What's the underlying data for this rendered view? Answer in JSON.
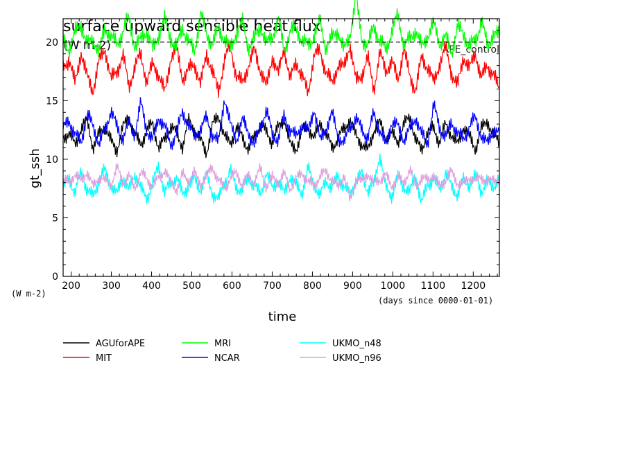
{
  "chart_data": {
    "type": "line",
    "title": "surface upward sensible heat flux",
    "title_units": "(W m-2)",
    "annotation": "APE_control",
    "xlabel": "time",
    "xunits": "(days since 0000-01-01)",
    "ylabel": "gt_ssh",
    "yunits": "(W m-2)",
    "xlim": [
      180,
      1265
    ],
    "ylim": [
      0,
      22
    ],
    "xticks": [
      200,
      300,
      400,
      500,
      600,
      700,
      800,
      900,
      1000,
      1100,
      1200
    ],
    "yticks": [
      0,
      5,
      10,
      15,
      20
    ],
    "reference_line_y": 20,
    "grid": false,
    "legend_position": "bottom",
    "series": [
      {
        "name": "AGUforAPE",
        "color": "#000000",
        "mean": 11.9,
        "min": 9.8,
        "max": 14.0,
        "values": [
          11.8,
          12.3,
          11.2,
          12.6,
          13.4,
          11.0,
          12.1,
          12.9,
          11.5,
          10.8,
          12.7,
          13.6,
          12.0,
          11.3,
          12.4,
          13.1,
          10.9,
          11.7,
          12.8,
          12.2,
          11.1,
          13.3,
          12.5,
          11.6,
          10.6,
          12.9,
          13.8,
          11.9,
          11.4,
          12.6,
          12.0,
          10.8,
          11.9,
          13.0,
          12.3,
          11.5,
          12.7,
          13.5,
          11.2,
          10.9,
          12.4,
          12.8,
          11.7,
          13.2,
          12.1,
          11.0,
          11.8,
          12.6,
          13.4,
          12.0,
          11.3,
          10.7,
          12.5,
          13.1,
          11.8,
          12.2,
          11.5,
          12.9,
          13.7,
          11.6,
          10.8,
          12.3,
          12.7,
          11.4,
          13.0,
          12.1,
          11.2,
          12.8,
          11.9,
          10.9,
          12.6,
          13.3,
          12.0,
          11.5
        ]
      },
      {
        "name": "MIT",
        "color": "#ff0000",
        "mean": 17.6,
        "min": 15.2,
        "max": 20.2,
        "values": [
          17.8,
          18.6,
          16.4,
          19.2,
          17.0,
          15.9,
          18.3,
          19.5,
          16.8,
          17.5,
          18.9,
          16.2,
          17.9,
          19.0,
          16.6,
          18.1,
          17.3,
          15.6,
          18.7,
          19.4,
          16.9,
          17.6,
          18.2,
          16.3,
          19.1,
          17.4,
          15.8,
          18.5,
          19.7,
          17.1,
          16.5,
          18.0,
          19.3,
          17.7,
          16.1,
          18.8,
          17.2,
          19.6,
          16.7,
          18.4,
          17.0,
          15.7,
          18.9,
          19.2,
          17.5,
          16.4,
          18.1,
          17.8,
          19.9,
          16.6,
          17.3,
          18.6,
          16.0,
          19.0,
          17.6,
          18.3,
          16.8,
          19.4,
          17.1,
          15.9,
          18.7,
          17.9,
          16.5,
          18.2,
          19.5,
          17.4,
          16.2,
          18.8,
          17.7,
          19.1,
          16.9,
          18.0,
          17.3,
          15.8
        ]
      },
      {
        "name": "MRI",
        "color": "#00ff00",
        "mean": 20.0,
        "min": 18.5,
        "max": 23.7,
        "values": [
          20.1,
          19.4,
          20.8,
          21.6,
          19.7,
          20.3,
          19.1,
          21.2,
          20.5,
          19.8,
          20.9,
          22.1,
          19.6,
          20.2,
          21.0,
          19.3,
          20.7,
          21.9,
          20.4,
          19.5,
          21.3,
          20.0,
          19.2,
          22.5,
          20.6,
          19.9,
          21.1,
          20.3,
          19.4,
          20.8,
          21.7,
          19.6,
          20.2,
          21.4,
          19.8,
          20.5,
          22.0,
          19.3,
          20.9,
          21.2,
          20.1,
          19.7,
          20.6,
          21.8,
          19.5,
          20.4,
          21.0,
          19.2,
          20.7,
          23.7,
          20.3,
          19.6,
          21.5,
          20.0,
          19.4,
          20.9,
          22.3,
          19.8,
          20.2,
          21.1,
          19.5,
          20.6,
          21.6,
          19.9,
          20.4,
          19.1,
          21.3,
          20.7,
          19.7,
          20.1,
          21.9,
          19.6,
          20.8,
          20.5
        ]
      },
      {
        "name": "NCAR",
        "color": "#0000ff",
        "mean": 12.5,
        "min": 10.8,
        "max": 15.3,
        "values": [
          12.6,
          13.4,
          12.0,
          11.5,
          13.8,
          12.9,
          11.3,
          12.4,
          14.2,
          12.7,
          11.8,
          13.1,
          12.2,
          14.8,
          12.5,
          11.6,
          13.6,
          12.8,
          11.2,
          12.3,
          14.0,
          13.0,
          11.9,
          12.6,
          13.5,
          12.1,
          11.4,
          15.3,
          12.9,
          11.7,
          13.3,
          12.4,
          11.1,
          12.8,
          14.1,
          12.2,
          11.6,
          13.7,
          12.5,
          11.9,
          13.0,
          12.3,
          14.4,
          11.5,
          12.7,
          13.9,
          12.0,
          11.3,
          12.9,
          13.4,
          12.6,
          11.8,
          14.0,
          12.4,
          11.2,
          13.2,
          12.8,
          11.7,
          12.5,
          13.6,
          12.1,
          11.4,
          14.6,
          12.7,
          11.9,
          13.1,
          12.3,
          11.6,
          12.9,
          13.5,
          12.0,
          11.3,
          12.6,
          12.1
        ]
      },
      {
        "name": "UKMO_n48",
        "color": "#00ffff",
        "mean": 7.9,
        "min": 6.2,
        "max": 10.5,
        "values": [
          7.6,
          8.4,
          7.1,
          8.9,
          7.4,
          6.8,
          8.2,
          9.1,
          7.7,
          7.0,
          8.6,
          7.3,
          8.8,
          7.5,
          6.6,
          8.0,
          9.4,
          7.2,
          7.9,
          8.5,
          6.9,
          7.8,
          8.3,
          7.4,
          8.7,
          7.1,
          6.5,
          8.1,
          9.0,
          7.6,
          7.3,
          8.4,
          7.8,
          6.9,
          8.9,
          7.5,
          8.2,
          7.0,
          8.6,
          7.7,
          7.2,
          9.2,
          7.9,
          6.8,
          8.3,
          7.4,
          8.7,
          7.6,
          7.1,
          8.0,
          8.8,
          7.3,
          7.8,
          10.5,
          7.5,
          6.9,
          8.4,
          7.7,
          7.2,
          8.6,
          6.2,
          7.9,
          8.3,
          7.4,
          8.9,
          7.6,
          7.0,
          8.2,
          7.8,
          8.5,
          7.3,
          8.1,
          7.7,
          8.4
        ]
      },
      {
        "name": "UKMO_n96",
        "color": "#dda0dd",
        "mean": 8.2,
        "min": 6.4,
        "max": 10.0,
        "values": [
          8.3,
          7.9,
          8.8,
          8.1,
          9.0,
          7.6,
          8.5,
          8.2,
          7.8,
          9.3,
          8.0,
          8.6,
          7.5,
          8.9,
          8.3,
          7.7,
          8.4,
          9.1,
          8.0,
          7.4,
          8.7,
          8.2,
          8.8,
          7.9,
          8.5,
          9.4,
          8.1,
          7.6,
          8.3,
          8.9,
          7.8,
          8.6,
          8.0,
          9.2,
          7.7,
          8.4,
          8.1,
          8.7,
          7.5,
          8.3,
          8.9,
          8.0,
          7.8,
          8.5,
          9.0,
          8.2,
          7.6,
          8.7,
          6.4,
          8.4,
          8.1,
          8.8,
          7.9,
          8.3,
          8.6,
          7.7,
          8.5,
          8.0,
          9.1,
          7.8,
          8.4,
          8.2,
          8.7,
          7.6,
          8.3,
          8.9,
          8.0,
          7.8,
          8.5,
          8.1,
          8.6,
          7.9,
          8.4,
          8.2
        ]
      }
    ]
  }
}
